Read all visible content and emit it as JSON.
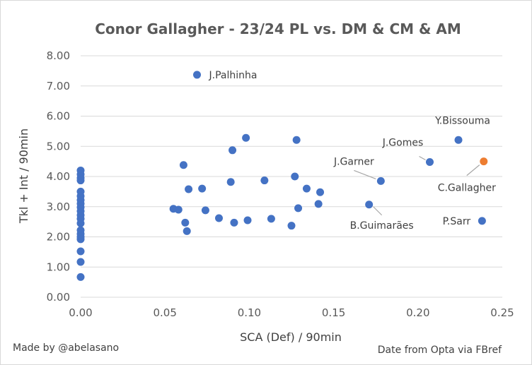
{
  "credit_left": "Made by @abelasano",
  "credit_right": "Date from Opta via FBref",
  "chart_data": {
    "type": "scatter",
    "title": "Conor Gallagher - 23/24 PL vs. DM & CM & AM",
    "xlabel": "SCA (Def) / 90min",
    "ylabel": "Tkl + Int / 90min",
    "xlim": [
      0,
      0.25
    ],
    "ylim": [
      0,
      8
    ],
    "x_ticks": [
      "0.00",
      "0.05",
      "0.10",
      "0.15",
      "0.20",
      "0.25"
    ],
    "y_ticks": [
      "0.00",
      "1.00",
      "2.00",
      "3.00",
      "4.00",
      "5.00",
      "6.00",
      "7.00",
      "8.00"
    ],
    "grid": "horizontal",
    "colors": {
      "others": "#4472C4",
      "highlight": "#ED7D31"
    },
    "series": [
      {
        "points": [
          {
            "x": 0,
            "y": 0.67
          },
          {
            "x": 0,
            "y": 1.17
          },
          {
            "x": 0,
            "y": 1.52
          },
          {
            "x": 0,
            "y": 1.92
          },
          {
            "x": 0,
            "y": 2.0
          },
          {
            "x": 0,
            "y": 2.1
          },
          {
            "x": 0,
            "y": 2.22
          },
          {
            "x": 0,
            "y": 2.45
          },
          {
            "x": 0,
            "y": 2.6
          },
          {
            "x": 0,
            "y": 2.72
          },
          {
            "x": 0,
            "y": 2.85
          },
          {
            "x": 0,
            "y": 2.98
          },
          {
            "x": 0,
            "y": 3.1
          },
          {
            "x": 0,
            "y": 3.22
          },
          {
            "x": 0,
            "y": 3.35
          },
          {
            "x": 0,
            "y": 3.5
          },
          {
            "x": 0,
            "y": 3.87
          },
          {
            "x": 0,
            "y": 3.95
          },
          {
            "x": 0,
            "y": 4.07
          },
          {
            "x": 0,
            "y": 4.2
          },
          {
            "x": 0.055,
            "y": 2.93
          },
          {
            "x": 0.058,
            "y": 2.9
          },
          {
            "x": 0.061,
            "y": 4.38
          },
          {
            "x": 0.062,
            "y": 2.47
          },
          {
            "x": 0.063,
            "y": 2.19
          },
          {
            "x": 0.064,
            "y": 3.58
          },
          {
            "x": 0.069,
            "y": 7.37,
            "label": "J.Palhinha"
          },
          {
            "x": 0.072,
            "y": 3.6
          },
          {
            "x": 0.074,
            "y": 2.88
          },
          {
            "x": 0.082,
            "y": 2.62
          },
          {
            "x": 0.089,
            "y": 3.82
          },
          {
            "x": 0.09,
            "y": 4.87
          },
          {
            "x": 0.091,
            "y": 2.47
          },
          {
            "x": 0.098,
            "y": 5.28
          },
          {
            "x": 0.099,
            "y": 2.55
          },
          {
            "x": 0.109,
            "y": 3.87
          },
          {
            "x": 0.113,
            "y": 2.6
          },
          {
            "x": 0.125,
            "y": 2.37
          },
          {
            "x": 0.127,
            "y": 4.0
          },
          {
            "x": 0.128,
            "y": 5.21
          },
          {
            "x": 0.129,
            "y": 2.95
          },
          {
            "x": 0.134,
            "y": 3.6
          },
          {
            "x": 0.141,
            "y": 3.09
          },
          {
            "x": 0.142,
            "y": 3.48
          },
          {
            "x": 0.171,
            "y": 3.07,
            "label": "B.Guimarães"
          },
          {
            "x": 0.178,
            "y": 3.85,
            "label": "J.Garner"
          },
          {
            "x": 0.207,
            "y": 4.48,
            "label": "J.Gomes"
          },
          {
            "x": 0.224,
            "y": 5.21,
            "label": "Y.Bissouma"
          },
          {
            "x": 0.238,
            "y": 2.53,
            "label": "P.Sarr"
          }
        ]
      },
      {
        "highlight": true,
        "points": [
          {
            "x": 0.239,
            "y": 4.5,
            "label": "C.Gallagher"
          }
        ]
      }
    ]
  }
}
